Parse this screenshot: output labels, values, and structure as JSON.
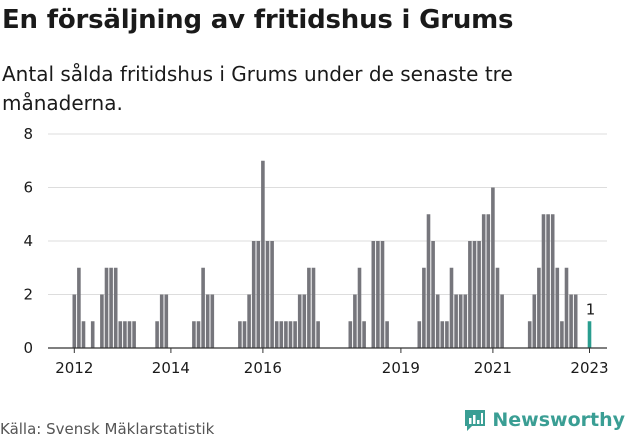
{
  "header": {
    "title": "En försäljning av fritidshus i Grums",
    "subtitle": "Antal sålda fritidshus i Grums under de senaste tre månaderna."
  },
  "footer": {
    "source": "Källa: Svensk Mäklarstatistik",
    "brand": "Newsworthy"
  },
  "colors": {
    "bar": "#76767c",
    "highlight": "#2a9d8f",
    "grid": "#dddddd",
    "brand": "#3a9e94"
  },
  "chart_data": {
    "type": "bar",
    "title": "En försäljning av fritidshus i Grums",
    "subtitle": "Antal sålda fritidshus i Grums under de senaste tre månaderna.",
    "xlabel": "",
    "ylabel": "",
    "ylim": [
      0,
      8
    ],
    "yticks": [
      0,
      2,
      4,
      6,
      8
    ],
    "grid": true,
    "start_label": "jan 2012",
    "x_tick_labels": [
      "2012",
      "2014",
      "2016",
      "2019",
      "2021",
      "2023"
    ],
    "x_tick_index": [
      0,
      21,
      41,
      71,
      91,
      112
    ],
    "highlight_index": 112,
    "last_value_label": "1",
    "values": [
      2,
      3,
      1,
      0,
      1,
      0,
      2,
      3,
      3,
      3,
      1,
      1,
      1,
      1,
      0,
      0,
      0,
      0,
      1,
      2,
      2,
      0,
      0,
      0,
      0,
      0,
      1,
      1,
      3,
      2,
      2,
      0,
      0,
      0,
      0,
      0,
      1,
      1,
      2,
      4,
      4,
      7,
      4,
      4,
      1,
      1,
      1,
      1,
      1,
      2,
      2,
      3,
      3,
      1,
      0,
      0,
      0,
      0,
      0,
      0,
      1,
      2,
      3,
      1,
      0,
      4,
      4,
      4,
      1,
      0,
      0,
      0,
      0,
      0,
      0,
      1,
      3,
      5,
      4,
      2,
      1,
      1,
      3,
      2,
      2,
      2,
      4,
      4,
      4,
      5,
      5,
      6,
      3,
      2,
      0,
      0,
      0,
      0,
      0,
      1,
      2,
      3,
      5,
      5,
      5,
      3,
      1,
      3,
      2,
      2,
      0,
      0,
      1
    ]
  }
}
